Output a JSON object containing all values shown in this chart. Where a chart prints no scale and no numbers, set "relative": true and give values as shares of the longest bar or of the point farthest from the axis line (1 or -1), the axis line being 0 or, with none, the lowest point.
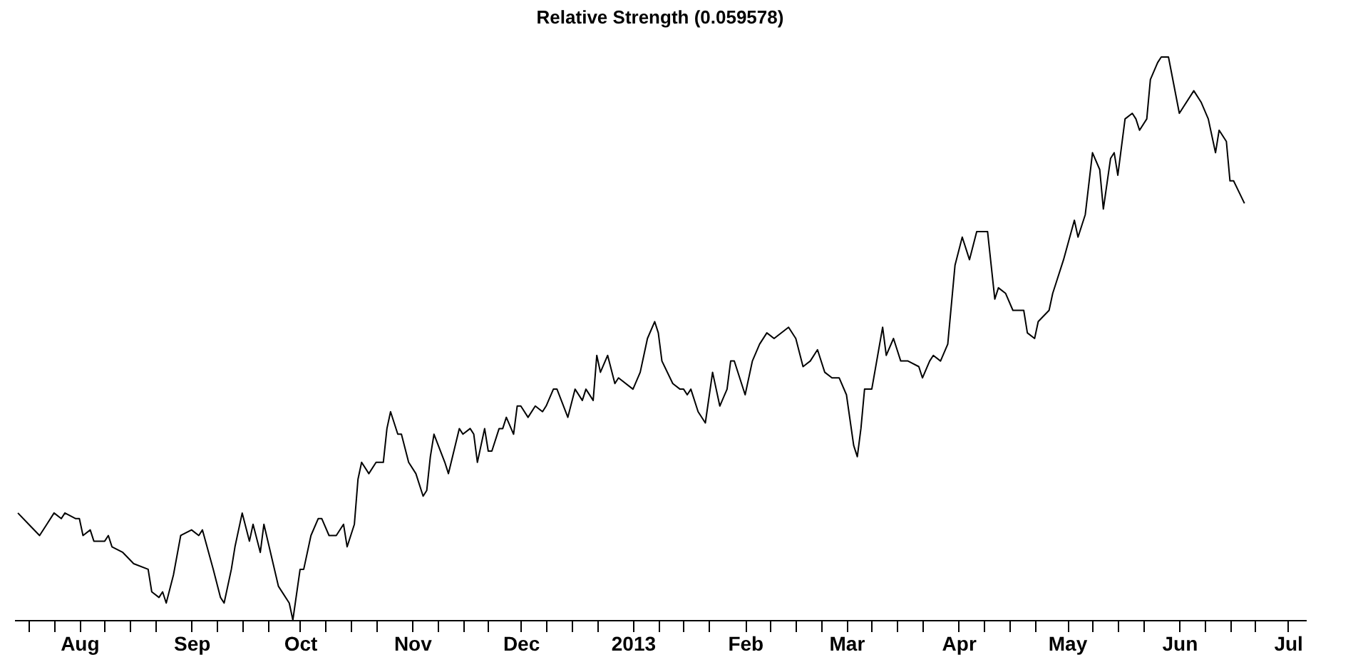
{
  "chart_data": {
    "type": "line",
    "title": "Relative Strength (0.059578)",
    "relative": true,
    "x": [
      "2012-07-15",
      "2012-07-18",
      "2012-07-21",
      "2012-07-23",
      "2012-07-25",
      "2012-07-27",
      "2012-07-28",
      "2012-07-31",
      "2012-08-01",
      "2012-08-02",
      "2012-08-04",
      "2012-08-05",
      "2012-08-08",
      "2012-08-09",
      "2012-08-10",
      "2012-08-13",
      "2012-08-16",
      "2012-08-20",
      "2012-08-21",
      "2012-08-23",
      "2012-08-24",
      "2012-08-25",
      "2012-08-27",
      "2012-08-29",
      "2012-09-01",
      "2012-09-03",
      "2012-09-04",
      "2012-09-07",
      "2012-09-09",
      "2012-09-10",
      "2012-09-12",
      "2012-09-13",
      "2012-09-15",
      "2012-09-17",
      "2012-09-18",
      "2012-09-20",
      "2012-09-21",
      "2012-09-25",
      "2012-09-28",
      "2012-09-29",
      "2012-10-01",
      "2012-10-02",
      "2012-10-04",
      "2012-10-06",
      "2012-10-07",
      "2012-10-09",
      "2012-10-11",
      "2012-10-13",
      "2012-10-14",
      "2012-10-16",
      "2012-10-17",
      "2012-10-18",
      "2012-10-20",
      "2012-10-22",
      "2012-10-24",
      "2012-10-25",
      "2012-10-26",
      "2012-10-28",
      "2012-10-29",
      "2012-10-31",
      "2012-11-02",
      "2012-11-04",
      "2012-11-05",
      "2012-11-06",
      "2012-11-07",
      "2012-11-10",
      "2012-11-11",
      "2012-11-14",
      "2012-11-15",
      "2012-11-17",
      "2012-11-18",
      "2012-11-19",
      "2012-11-21",
      "2012-11-22",
      "2012-11-23",
      "2012-11-25",
      "2012-11-26",
      "2012-11-27",
      "2012-11-29",
      "2012-11-30",
      "2012-12-01",
      "2012-12-03",
      "2012-12-05",
      "2012-12-07",
      "2012-12-08",
      "2012-12-10",
      "2012-12-11",
      "2012-12-14",
      "2012-12-16",
      "2012-12-18",
      "2012-12-19",
      "2012-12-21",
      "2012-12-22",
      "2012-12-23",
      "2012-12-25",
      "2012-12-27",
      "2012-12-28",
      "2013-01-01",
      "2013-01-03",
      "2013-01-05",
      "2013-01-07",
      "2013-01-08",
      "2013-01-09",
      "2013-01-12",
      "2013-01-14",
      "2013-01-15",
      "2013-01-16",
      "2013-01-17",
      "2013-01-19",
      "2013-01-21",
      "2013-01-23",
      "2013-01-25",
      "2013-01-27",
      "2013-01-28",
      "2013-01-29",
      "2013-02-01",
      "2013-02-03",
      "2013-02-05",
      "2013-02-07",
      "2013-02-09",
      "2013-02-13",
      "2013-02-15",
      "2013-02-17",
      "2013-02-19",
      "2013-02-21",
      "2013-02-23",
      "2013-02-25",
      "2013-02-27",
      "2013-03-01",
      "2013-03-03",
      "2013-03-04",
      "2013-03-05",
      "2013-03-06",
      "2013-03-08",
      "2013-03-11",
      "2013-03-12",
      "2013-03-14",
      "2013-03-16",
      "2013-03-18",
      "2013-03-21",
      "2013-03-22",
      "2013-03-24",
      "2013-03-25",
      "2013-03-27",
      "2013-03-29",
      "2013-03-31",
      "2013-04-02",
      "2013-04-04",
      "2013-04-06",
      "2013-04-08",
      "2013-04-09",
      "2013-04-11",
      "2013-04-12",
      "2013-04-14",
      "2013-04-16",
      "2013-04-17",
      "2013-04-19",
      "2013-04-20",
      "2013-04-22",
      "2013-04-23",
      "2013-04-26",
      "2013-04-27",
      "2013-04-28",
      "2013-04-30",
      "2013-05-03",
      "2013-05-04",
      "2013-05-06",
      "2013-05-08",
      "2013-05-10",
      "2013-05-11",
      "2013-05-13",
      "2013-05-14",
      "2013-05-15",
      "2013-05-17",
      "2013-05-19",
      "2013-05-20",
      "2013-05-21",
      "2013-05-23",
      "2013-05-24",
      "2013-05-26",
      "2013-05-27",
      "2013-05-29",
      "2013-06-01",
      "2013-06-05",
      "2013-06-07",
      "2013-06-09",
      "2013-06-11",
      "2013-06-12",
      "2013-06-14",
      "2013-06-15",
      "2013-06-16",
      "2013-06-19"
    ],
    "series": [
      {
        "color": "#000000",
        "values": [
          0.19,
          0.17,
          0.15,
          0.17,
          0.19,
          0.18,
          0.19,
          0.18,
          0.18,
          0.15,
          0.16,
          0.14,
          0.14,
          0.15,
          0.13,
          0.12,
          0.1,
          0.09,
          0.05,
          0.04,
          0.05,
          0.03,
          0.08,
          0.15,
          0.16,
          0.15,
          0.16,
          0.09,
          0.04,
          0.03,
          0.09,
          0.13,
          0.19,
          0.14,
          0.17,
          0.12,
          0.17,
          0.06,
          0.03,
          0.0,
          0.09,
          0.09,
          0.15,
          0.18,
          0.18,
          0.15,
          0.15,
          0.17,
          0.13,
          0.17,
          0.25,
          0.28,
          0.26,
          0.28,
          0.28,
          0.34,
          0.37,
          0.33,
          0.33,
          0.28,
          0.26,
          0.22,
          0.23,
          0.29,
          0.33,
          0.28,
          0.26,
          0.34,
          0.33,
          0.34,
          0.33,
          0.28,
          0.34,
          0.3,
          0.3,
          0.34,
          0.34,
          0.36,
          0.33,
          0.38,
          0.38,
          0.36,
          0.38,
          0.37,
          0.38,
          0.41,
          0.41,
          0.36,
          0.41,
          0.39,
          0.41,
          0.39,
          0.47,
          0.44,
          0.47,
          0.42,
          0.43,
          0.41,
          0.44,
          0.5,
          0.53,
          0.51,
          0.46,
          0.42,
          0.41,
          0.41,
          0.4,
          0.41,
          0.37,
          0.35,
          0.44,
          0.38,
          0.41,
          0.46,
          0.46,
          0.4,
          0.46,
          0.49,
          0.51,
          0.5,
          0.52,
          0.5,
          0.45,
          0.46,
          0.48,
          0.44,
          0.43,
          0.43,
          0.4,
          0.31,
          0.29,
          0.34,
          0.41,
          0.41,
          0.52,
          0.47,
          0.5,
          0.46,
          0.46,
          0.45,
          0.43,
          0.46,
          0.47,
          0.46,
          0.49,
          0.63,
          0.68,
          0.64,
          0.69,
          0.69,
          0.69,
          0.57,
          0.59,
          0.58,
          0.55,
          0.55,
          0.55,
          0.51,
          0.5,
          0.53,
          0.55,
          0.58,
          0.6,
          0.64,
          0.71,
          0.68,
          0.72,
          0.83,
          0.8,
          0.73,
          0.82,
          0.83,
          0.79,
          0.89,
          0.9,
          0.89,
          0.87,
          0.89,
          0.96,
          0.99,
          1.0,
          1.0,
          0.9,
          0.94,
          0.92,
          0.89,
          0.83,
          0.87,
          0.85,
          0.78,
          0.78,
          0.74
        ]
      }
    ],
    "xlim": [
      "2012-07-14",
      "2013-07-06"
    ],
    "xticks": [
      {
        "value": "2012-07-18",
        "label": null
      },
      {
        "value": "2012-07-25",
        "label": null
      },
      {
        "value": "2012-08-01",
        "label": "Aug"
      },
      {
        "value": "2012-08-08",
        "label": null
      },
      {
        "value": "2012-08-15",
        "label": null
      },
      {
        "value": "2012-08-22",
        "label": null
      },
      {
        "value": "2012-09-01",
        "label": "Sep"
      },
      {
        "value": "2012-09-08",
        "label": null
      },
      {
        "value": "2012-09-15",
        "label": null
      },
      {
        "value": "2012-09-22",
        "label": null
      },
      {
        "value": "2012-10-01",
        "label": "Oct"
      },
      {
        "value": "2012-10-08",
        "label": null
      },
      {
        "value": "2012-10-15",
        "label": null
      },
      {
        "value": "2012-10-22",
        "label": null
      },
      {
        "value": "2012-11-01",
        "label": "Nov"
      },
      {
        "value": "2012-11-08",
        "label": null
      },
      {
        "value": "2012-11-15",
        "label": null
      },
      {
        "value": "2012-11-22",
        "label": null
      },
      {
        "value": "2012-12-01",
        "label": "Dec"
      },
      {
        "value": "2012-12-08",
        "label": null
      },
      {
        "value": "2012-12-15",
        "label": null
      },
      {
        "value": "2012-12-22",
        "label": null
      },
      {
        "value": "2013-01-01",
        "label": "2013"
      },
      {
        "value": "2013-01-08",
        "label": null
      },
      {
        "value": "2013-01-15",
        "label": null
      },
      {
        "value": "2013-01-22",
        "label": null
      },
      {
        "value": "2013-02-01",
        "label": "Feb"
      },
      {
        "value": "2013-02-08",
        "label": null
      },
      {
        "value": "2013-02-15",
        "label": null
      },
      {
        "value": "2013-02-22",
        "label": null
      },
      {
        "value": "2013-03-01",
        "label": "Mar"
      },
      {
        "value": "2013-03-08",
        "label": null
      },
      {
        "value": "2013-03-15",
        "label": null
      },
      {
        "value": "2013-03-22",
        "label": null
      },
      {
        "value": "2013-04-01",
        "label": "Apr"
      },
      {
        "value": "2013-04-08",
        "label": null
      },
      {
        "value": "2013-04-15",
        "label": null
      },
      {
        "value": "2013-04-22",
        "label": null
      },
      {
        "value": "2013-05-01",
        "label": "May"
      },
      {
        "value": "2013-05-08",
        "label": null
      },
      {
        "value": "2013-05-15",
        "label": null
      },
      {
        "value": "2013-05-22",
        "label": null
      },
      {
        "value": "2013-06-01",
        "label": "Jun"
      },
      {
        "value": "2013-06-08",
        "label": null
      },
      {
        "value": "2013-06-15",
        "label": null
      },
      {
        "value": "2013-06-22",
        "label": null
      },
      {
        "value": "2013-07-01",
        "label": "Jul"
      }
    ]
  }
}
